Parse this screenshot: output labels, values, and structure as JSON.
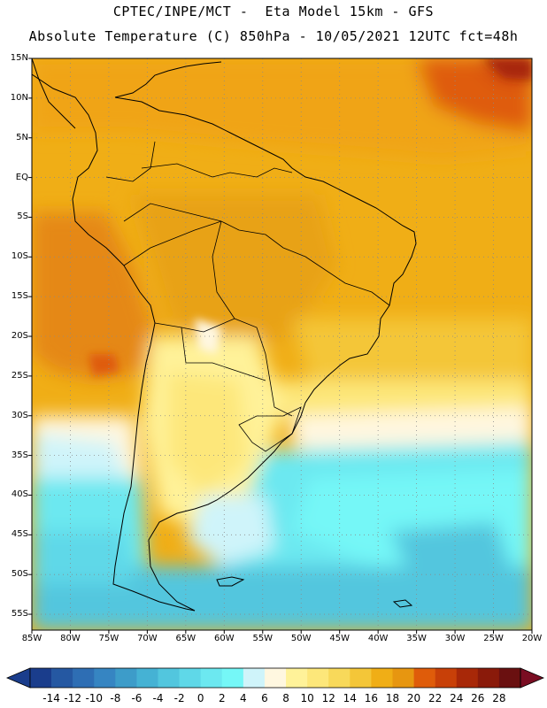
{
  "header": {
    "line1": "CPTEC/INPE/MCT -  Eta Model 15km - GFS",
    "line2": "Absolute Temperature (C) 850hPa - 10/05/2021 12UTC fct=48h"
  },
  "map": {
    "lat_labels": [
      "15N",
      "10N",
      "5N",
      "EQ",
      "5S",
      "10S",
      "15S",
      "20S",
      "25S",
      "30S",
      "35S",
      "40S",
      "45S",
      "50S",
      "55S"
    ],
    "lon_labels": [
      "85W",
      "80W",
      "75W",
      "70W",
      "65W",
      "60W",
      "55W",
      "50W",
      "45W",
      "40W",
      "35W",
      "30W",
      "25W",
      "20W"
    ],
    "lat_range": [
      15,
      -57
    ],
    "lon_range": [
      -85,
      -20
    ],
    "gridlines": "dotted"
  },
  "colorbar": {
    "labels": [
      "-14",
      "-12",
      "-10",
      "-8",
      "-6",
      "-4",
      "-2",
      "0",
      "2",
      "4",
      "6",
      "8",
      "10",
      "12",
      "14",
      "16",
      "18",
      "20",
      "22",
      "24",
      "26",
      "28"
    ],
    "colors": [
      "#1a3d8c",
      "#2558a2",
      "#2e6eb4",
      "#3685c2",
      "#3d9cc9",
      "#45b2d4",
      "#52c6de",
      "#5fd8e8",
      "#6ce8f0",
      "#75f7f7",
      "#cff4fa",
      "#fff7e0",
      "#fff299",
      "#fde77a",
      "#f8d95a",
      "#f4c638",
      "#f0ae16",
      "#e79610",
      "#df5c0a",
      "#c84008",
      "#a82808",
      "#8a1a0a",
      "#6a1010"
    ],
    "under_color": "#1a3d8c",
    "over_color": "#7a0d22"
  }
}
